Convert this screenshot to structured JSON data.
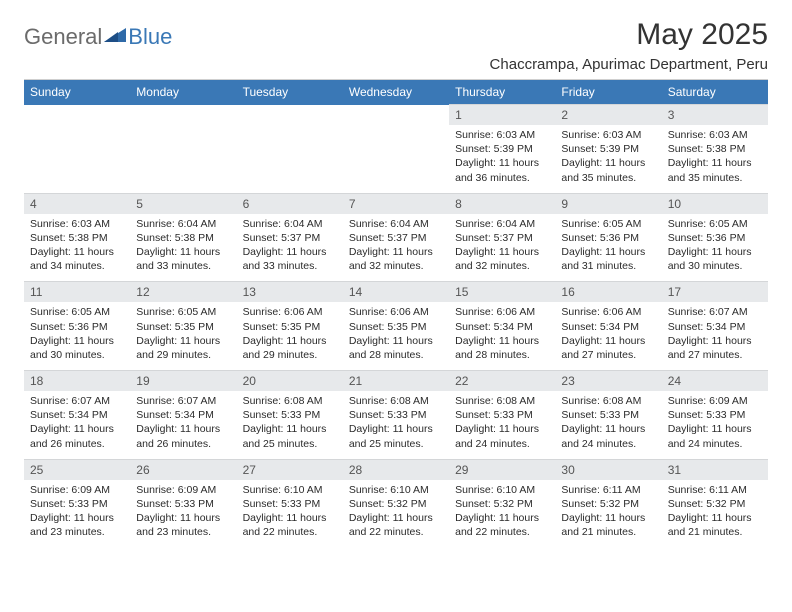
{
  "brand": {
    "part1": "General",
    "part2": "Blue"
  },
  "title": "May 2025",
  "location": "Chaccrampa, Apurimac Department, Peru",
  "colors": {
    "header_bg": "#3a78b6",
    "header_text": "#ffffff",
    "daynum_bg": "#e7e9eb",
    "body_text": "#2b2b2b",
    "title_text": "#333333",
    "logo_gray": "#6b6b6b",
    "logo_blue": "#3a78b6"
  },
  "fonts": {
    "title_size": 30,
    "location_size": 15,
    "th_size": 12,
    "cell_size": 10.5
  },
  "weekdays": [
    "Sunday",
    "Monday",
    "Tuesday",
    "Wednesday",
    "Thursday",
    "Friday",
    "Saturday"
  ],
  "weeks": [
    [
      null,
      null,
      null,
      null,
      {
        "n": "1",
        "sunrise": "6:03 AM",
        "sunset": "5:39 PM",
        "daylight": "11 hours and 36 minutes."
      },
      {
        "n": "2",
        "sunrise": "6:03 AM",
        "sunset": "5:39 PM",
        "daylight": "11 hours and 35 minutes."
      },
      {
        "n": "3",
        "sunrise": "6:03 AM",
        "sunset": "5:38 PM",
        "daylight": "11 hours and 35 minutes."
      }
    ],
    [
      {
        "n": "4",
        "sunrise": "6:03 AM",
        "sunset": "5:38 PM",
        "daylight": "11 hours and 34 minutes."
      },
      {
        "n": "5",
        "sunrise": "6:04 AM",
        "sunset": "5:38 PM",
        "daylight": "11 hours and 33 minutes."
      },
      {
        "n": "6",
        "sunrise": "6:04 AM",
        "sunset": "5:37 PM",
        "daylight": "11 hours and 33 minutes."
      },
      {
        "n": "7",
        "sunrise": "6:04 AM",
        "sunset": "5:37 PM",
        "daylight": "11 hours and 32 minutes."
      },
      {
        "n": "8",
        "sunrise": "6:04 AM",
        "sunset": "5:37 PM",
        "daylight": "11 hours and 32 minutes."
      },
      {
        "n": "9",
        "sunrise": "6:05 AM",
        "sunset": "5:36 PM",
        "daylight": "11 hours and 31 minutes."
      },
      {
        "n": "10",
        "sunrise": "6:05 AM",
        "sunset": "5:36 PM",
        "daylight": "11 hours and 30 minutes."
      }
    ],
    [
      {
        "n": "11",
        "sunrise": "6:05 AM",
        "sunset": "5:36 PM",
        "daylight": "11 hours and 30 minutes."
      },
      {
        "n": "12",
        "sunrise": "6:05 AM",
        "sunset": "5:35 PM",
        "daylight": "11 hours and 29 minutes."
      },
      {
        "n": "13",
        "sunrise": "6:06 AM",
        "sunset": "5:35 PM",
        "daylight": "11 hours and 29 minutes."
      },
      {
        "n": "14",
        "sunrise": "6:06 AM",
        "sunset": "5:35 PM",
        "daylight": "11 hours and 28 minutes."
      },
      {
        "n": "15",
        "sunrise": "6:06 AM",
        "sunset": "5:34 PM",
        "daylight": "11 hours and 28 minutes."
      },
      {
        "n": "16",
        "sunrise": "6:06 AM",
        "sunset": "5:34 PM",
        "daylight": "11 hours and 27 minutes."
      },
      {
        "n": "17",
        "sunrise": "6:07 AM",
        "sunset": "5:34 PM",
        "daylight": "11 hours and 27 minutes."
      }
    ],
    [
      {
        "n": "18",
        "sunrise": "6:07 AM",
        "sunset": "5:34 PM",
        "daylight": "11 hours and 26 minutes."
      },
      {
        "n": "19",
        "sunrise": "6:07 AM",
        "sunset": "5:34 PM",
        "daylight": "11 hours and 26 minutes."
      },
      {
        "n": "20",
        "sunrise": "6:08 AM",
        "sunset": "5:33 PM",
        "daylight": "11 hours and 25 minutes."
      },
      {
        "n": "21",
        "sunrise": "6:08 AM",
        "sunset": "5:33 PM",
        "daylight": "11 hours and 25 minutes."
      },
      {
        "n": "22",
        "sunrise": "6:08 AM",
        "sunset": "5:33 PM",
        "daylight": "11 hours and 24 minutes."
      },
      {
        "n": "23",
        "sunrise": "6:08 AM",
        "sunset": "5:33 PM",
        "daylight": "11 hours and 24 minutes."
      },
      {
        "n": "24",
        "sunrise": "6:09 AM",
        "sunset": "5:33 PM",
        "daylight": "11 hours and 24 minutes."
      }
    ],
    [
      {
        "n": "25",
        "sunrise": "6:09 AM",
        "sunset": "5:33 PM",
        "daylight": "11 hours and 23 minutes."
      },
      {
        "n": "26",
        "sunrise": "6:09 AM",
        "sunset": "5:33 PM",
        "daylight": "11 hours and 23 minutes."
      },
      {
        "n": "27",
        "sunrise": "6:10 AM",
        "sunset": "5:33 PM",
        "daylight": "11 hours and 22 minutes."
      },
      {
        "n": "28",
        "sunrise": "6:10 AM",
        "sunset": "5:32 PM",
        "daylight": "11 hours and 22 minutes."
      },
      {
        "n": "29",
        "sunrise": "6:10 AM",
        "sunset": "5:32 PM",
        "daylight": "11 hours and 22 minutes."
      },
      {
        "n": "30",
        "sunrise": "6:11 AM",
        "sunset": "5:32 PM",
        "daylight": "11 hours and 21 minutes."
      },
      {
        "n": "31",
        "sunrise": "6:11 AM",
        "sunset": "5:32 PM",
        "daylight": "11 hours and 21 minutes."
      }
    ]
  ],
  "labels": {
    "sunrise": "Sunrise:",
    "sunset": "Sunset:",
    "daylight": "Daylight:"
  }
}
